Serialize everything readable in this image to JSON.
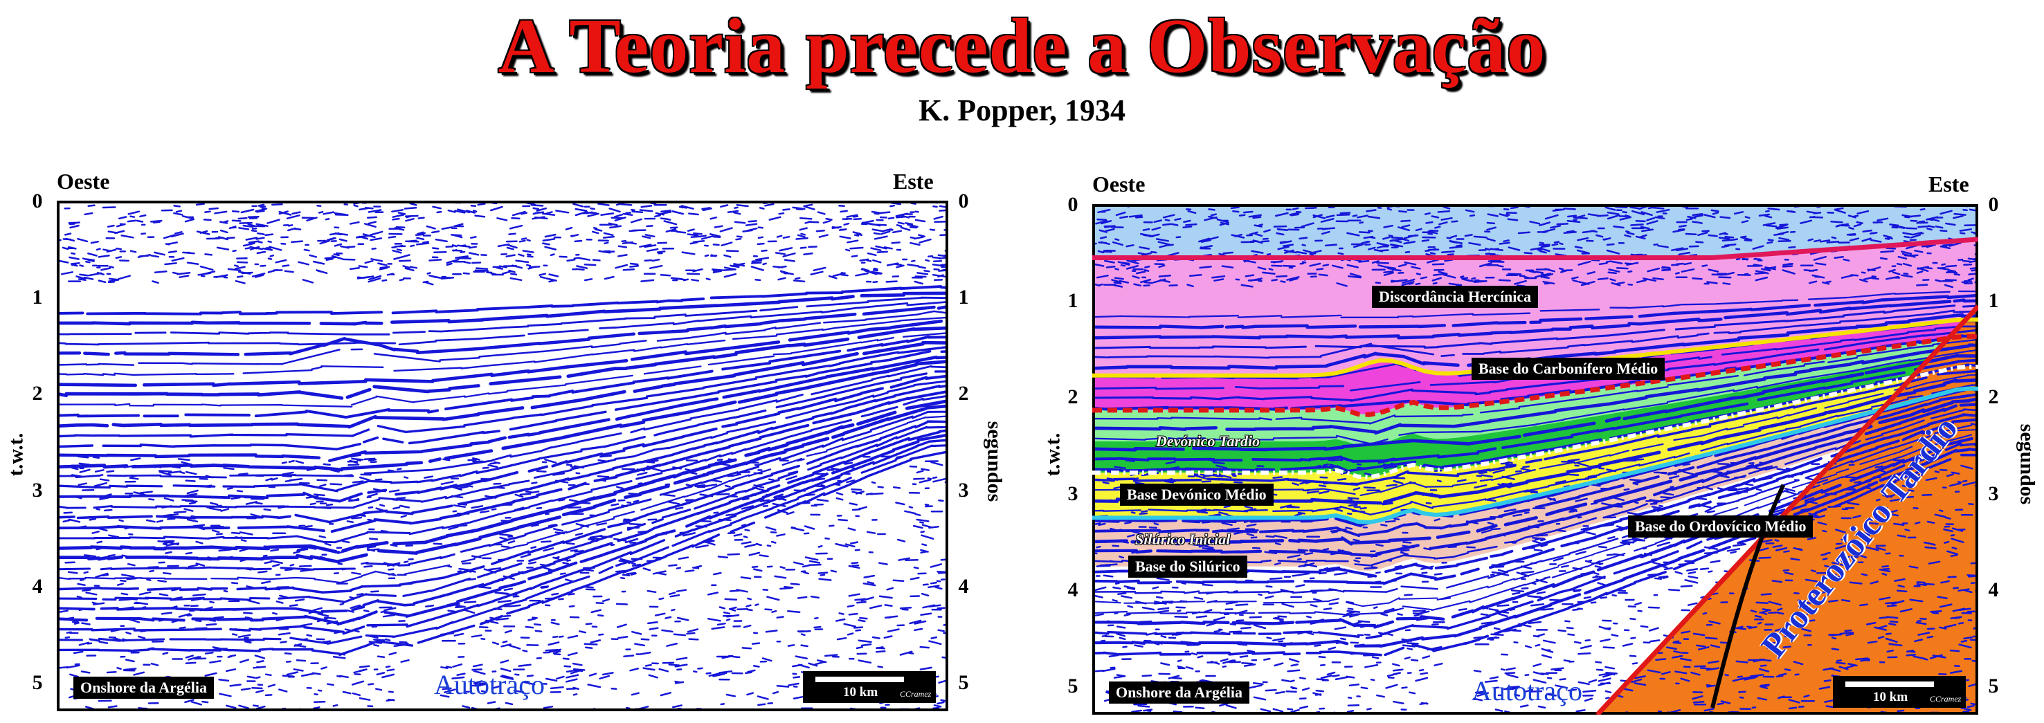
{
  "title": "A Teoria precede a Observação",
  "subtitle": "K. Popper, 1934",
  "left_panel": {
    "west_label": "Oeste",
    "east_label": "Este",
    "y_title_left": "t.w.t.",
    "y_title_right": "segundos",
    "ticks": [
      "0",
      "1",
      "2",
      "3",
      "4",
      "5"
    ],
    "location_label": "Onshore  da Argélia",
    "autotrace_label": "Autotraço",
    "scale_label": "10 km",
    "scale_logo": "CCramez"
  },
  "right_panel": {
    "west_label": "Oeste",
    "east_label": "Este",
    "y_title_left": "t.w.t.",
    "y_title_right": "segundos",
    "ticks": [
      "0",
      "1",
      "2",
      "3",
      "4",
      "5"
    ],
    "location_label": "Onshore  da Argélia",
    "autotrace_label": "Autotraço",
    "scale_label": "10 km",
    "scale_logo": "CCramez",
    "interpretation_labels": {
      "hercynian": "Discordância Hercínica",
      "base_carboniferous": "Base do Carbonífero Médio",
      "late_devonian": "Devónico Tardio",
      "base_middle_devonian": "Base Devónico Médio",
      "early_silurian": "Silúrico Inicial",
      "base_silurian": "Base do Silúrico",
      "base_ordovician": "Base do Ordovícico Médio",
      "proterozoic": "Proterozóico Tardio"
    },
    "colors": {
      "sky": "#a9d2f5",
      "carboniferous": "#f59ee8",
      "devonian_upper": "#ee44dc",
      "devonian_green_light": "#8ff09c",
      "devonian_green": "#1fc43a",
      "silurian_yellow": "#f8f436",
      "ordovician_pink": "#f3c7b8",
      "proterozoic_orange": "#f27a1a",
      "hercynian_line": "#e0185a",
      "carb_line": "#f5e200",
      "devonian_line": "#e01818",
      "ordovician_line": "#30c8e8"
    }
  }
}
